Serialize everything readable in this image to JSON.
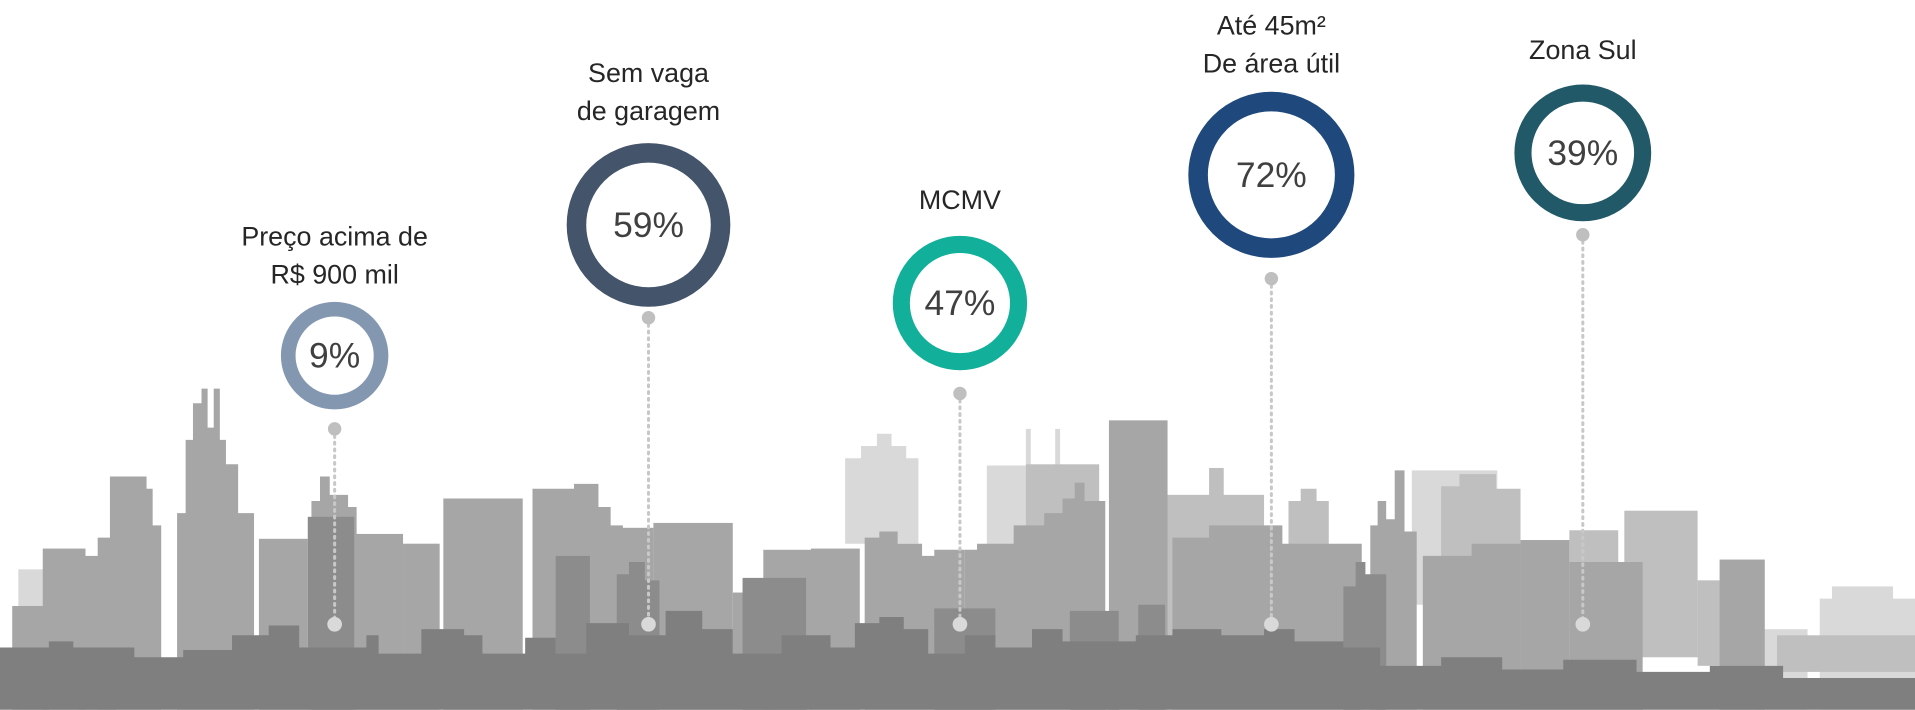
{
  "items": [
    {
      "label": [
        "Preço acima de",
        "R$ 900 mil"
      ],
      "value": "9%",
      "color": "#8497b0"
    },
    {
      "label": [
        "Sem vaga",
        "de garagem"
      ],
      "value": "59%",
      "color": "#44546a"
    },
    {
      "label": [
        "MCMV"
      ],
      "value": "47%",
      "color": "#12b09a"
    },
    {
      "label": [
        "Até 45m²",
        "De área útil"
      ],
      "value": "72%",
      "color": "#1f497d"
    },
    {
      "label": [
        "Zona Sul"
      ],
      "value": "39%",
      "color": "#215968"
    }
  ]
}
